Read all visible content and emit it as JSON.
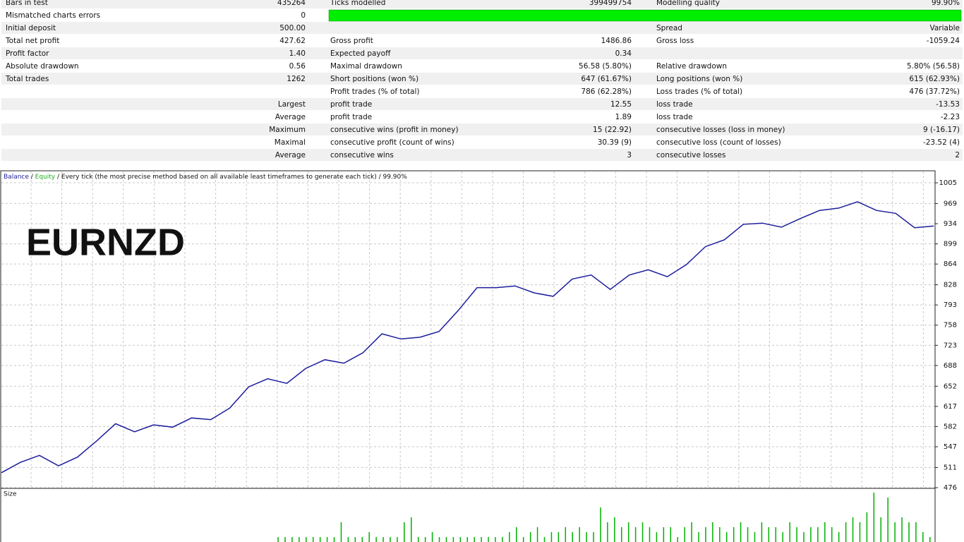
{
  "report": {
    "rows": [
      [
        "Bars in test",
        "435264",
        "Ticks modelled",
        "399499754",
        "Modelling quality",
        "99.90%"
      ],
      [
        "Mismatched charts errors",
        "0",
        null,
        null,
        null,
        null
      ],
      [
        "Initial deposit",
        "500.00",
        null,
        null,
        "Spread",
        "Variable"
      ],
      [
        "Total net profit",
        "427.62",
        "Gross profit",
        "1486.86",
        "Gross loss",
        "-1059.24"
      ],
      [
        "Profit factor",
        "1.40",
        "Expected payoff",
        "0.34",
        null,
        null
      ],
      [
        "Absolute drawdown",
        "0.56",
        "Maximal drawdown",
        "56.58 (5.80%)",
        "Relative drawdown",
        "5.80% (56.58)"
      ],
      [
        "Total trades",
        "1262",
        "Short positions (won %)",
        "647 (61.67%)",
        "Long positions (won %)",
        "615 (62.93%)"
      ],
      [
        null,
        null,
        "Profit trades (% of total)",
        "786 (62.28%)",
        "Loss trades (% of total)",
        "476 (37.72%)"
      ],
      [
        null,
        "Largest",
        "profit trade",
        "12.55",
        "loss trade",
        "-13.53"
      ],
      [
        null,
        "Average",
        "profit trade",
        "1.89",
        "loss trade",
        "-2.23"
      ],
      [
        null,
        "Maximum",
        "consecutive wins (profit in money)",
        "15 (22.92)",
        "consecutive losses (loss in money)",
        "9 (-16.17)"
      ],
      [
        null,
        "Maximal",
        "consecutive profit (count of wins)",
        "30.39 (9)",
        "consecutive loss (count of losses)",
        "-23.52 (4)"
      ],
      [
        null,
        "Average",
        "consecutive wins",
        "3",
        "consecutive losses",
        "2"
      ]
    ]
  },
  "chart_data": {
    "type": "line",
    "annotation": "EURNZD",
    "subtitle": " / Every tick (the most precise method based on all available least timeframes to generate each tick) / 99.90%",
    "separator": " / ",
    "series": [
      {
        "name": "Balance",
        "color": "#1c1c9c",
        "values": [
          502,
          520,
          532,
          514,
          529,
          557,
          587,
          573,
          585,
          581,
          597,
          594,
          614,
          651,
          665,
          657,
          683,
          698,
          692,
          710,
          743,
          734,
          737,
          747,
          783,
          823,
          823,
          826,
          814,
          808,
          838,
          845,
          820,
          845,
          854,
          842,
          863,
          894,
          906,
          933,
          935,
          928,
          943,
          957,
          961,
          972,
          957,
          952,
          927,
          930
        ]
      },
      {
        "name": "Equity",
        "color": "#22aa22"
      }
    ],
    "ylim": [
      474.8,
      1025.8
    ],
    "yticks": [
      1005,
      969,
      934,
      899,
      864,
      828,
      793,
      758,
      723,
      688,
      652,
      617,
      582,
      547,
      511,
      476
    ],
    "grid": true,
    "size_panel": {
      "title": "Size",
      "color": "#00b000",
      "values": [
        0,
        0,
        0,
        0,
        0,
        0,
        0,
        0,
        0,
        0,
        0,
        0,
        0,
        0,
        0,
        0,
        0,
        0,
        0,
        0,
        0,
        0,
        0,
        0,
        0,
        0,
        0,
        0,
        0,
        0,
        0,
        0,
        0,
        0,
        0,
        0,
        0,
        0,
        0,
        1,
        1,
        1,
        1,
        1,
        1,
        1,
        1,
        1,
        4,
        1,
        1,
        1,
        2,
        1,
        1,
        1,
        1,
        4,
        5,
        1,
        1,
        2,
        1,
        1,
        1,
        1,
        1,
        1,
        1,
        1,
        1,
        1,
        2,
        3,
        1,
        2,
        3,
        1,
        2,
        2,
        3,
        2,
        3,
        2,
        2,
        7,
        4,
        5,
        3,
        4,
        3,
        4,
        3,
        2,
        3,
        3,
        1,
        3,
        4,
        2,
        3,
        4,
        3,
        2,
        3,
        4,
        3,
        2,
        4,
        3,
        3,
        2,
        4,
        3,
        2,
        3,
        3,
        4,
        3,
        2,
        4,
        5,
        4,
        6,
        10,
        5,
        9,
        4,
        5,
        4,
        4,
        2,
        1
      ]
    }
  }
}
